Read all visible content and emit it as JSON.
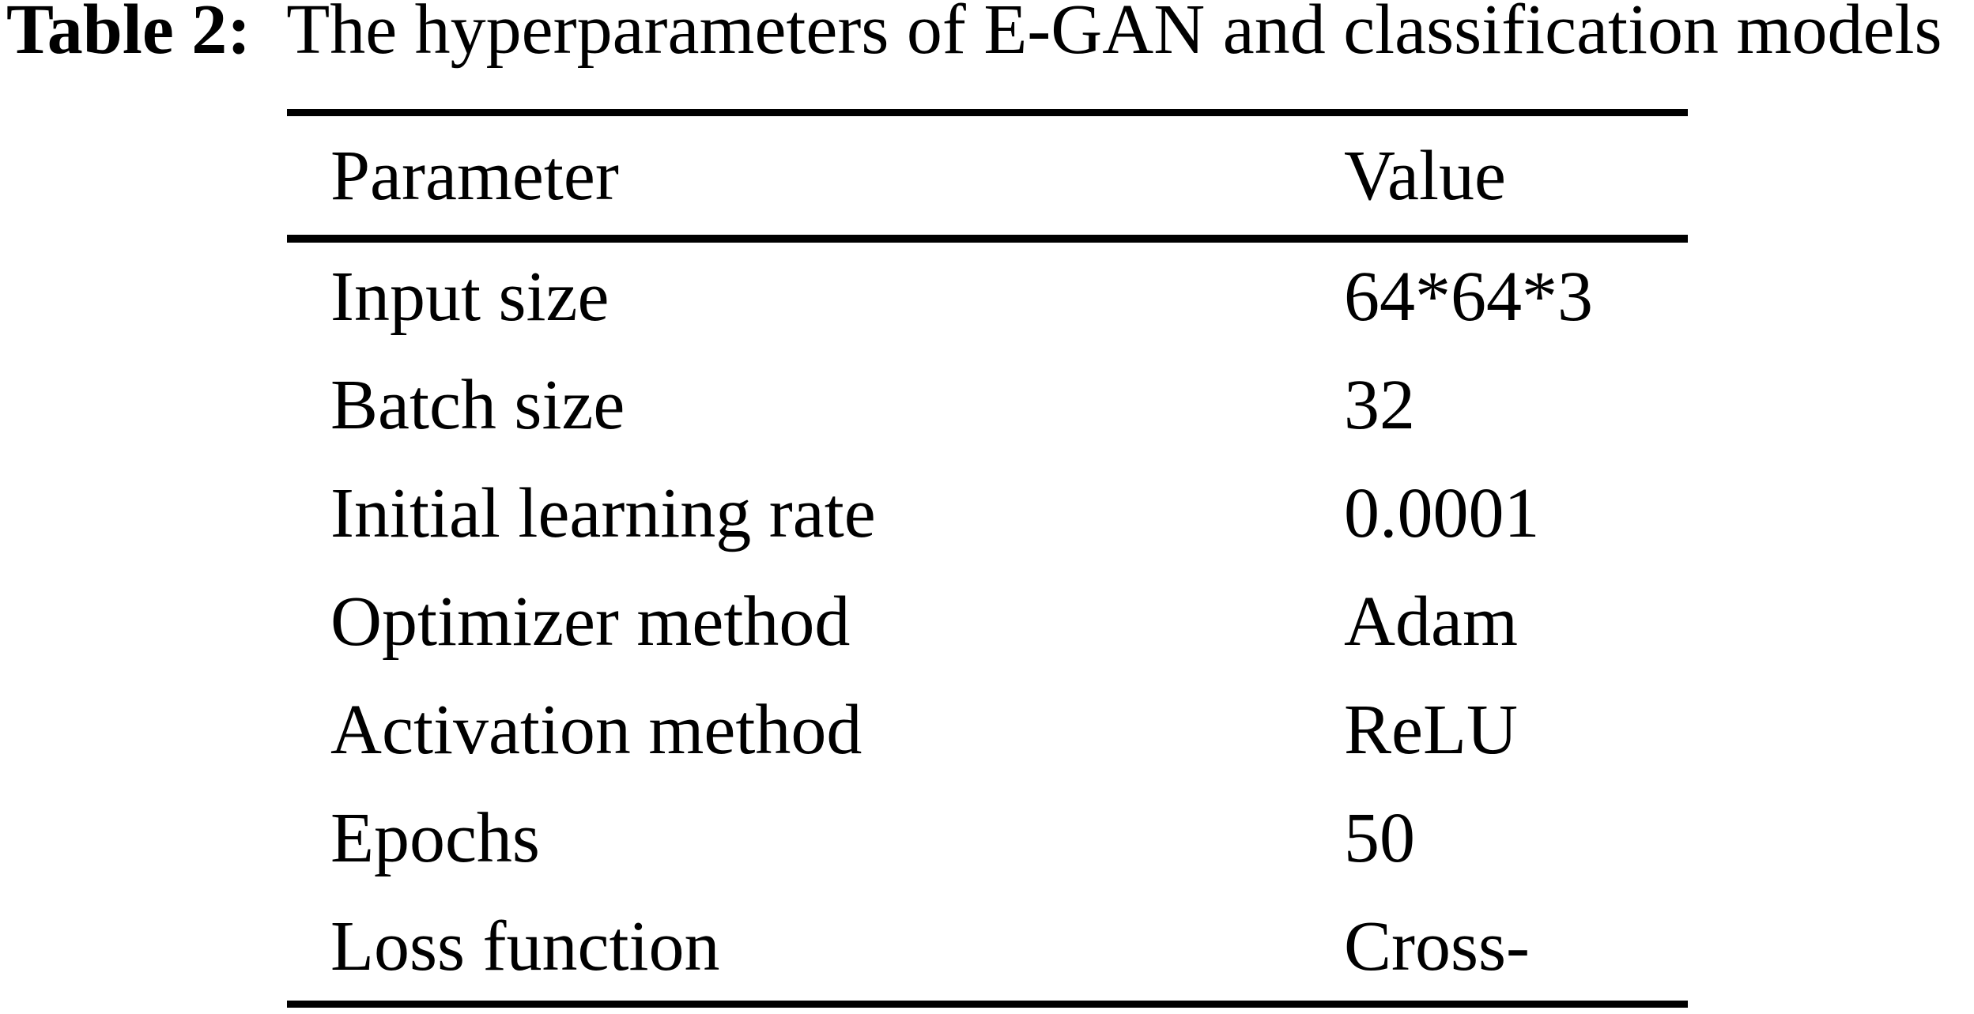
{
  "caption": {
    "label": "Table 2:",
    "text": "The hyperparameters of E-GAN and classification models"
  },
  "chart_data": {
    "type": "table",
    "title": "Table 2: The hyperparameters of E-GAN and classification models",
    "columns": [
      "Parameter",
      "Value"
    ],
    "rows": [
      [
        "Input size",
        "64*64*3"
      ],
      [
        "Batch size",
        "32"
      ],
      [
        "Initial learning rate",
        "0.0001"
      ],
      [
        "Optimizer method",
        "Adam"
      ],
      [
        "Activation method",
        "ReLU"
      ],
      [
        "Epochs",
        "50"
      ],
      [
        "Loss function",
        "Cross-"
      ]
    ]
  },
  "colors": {
    "text": "#000000",
    "background": "#ffffff",
    "rule": "#000000"
  }
}
